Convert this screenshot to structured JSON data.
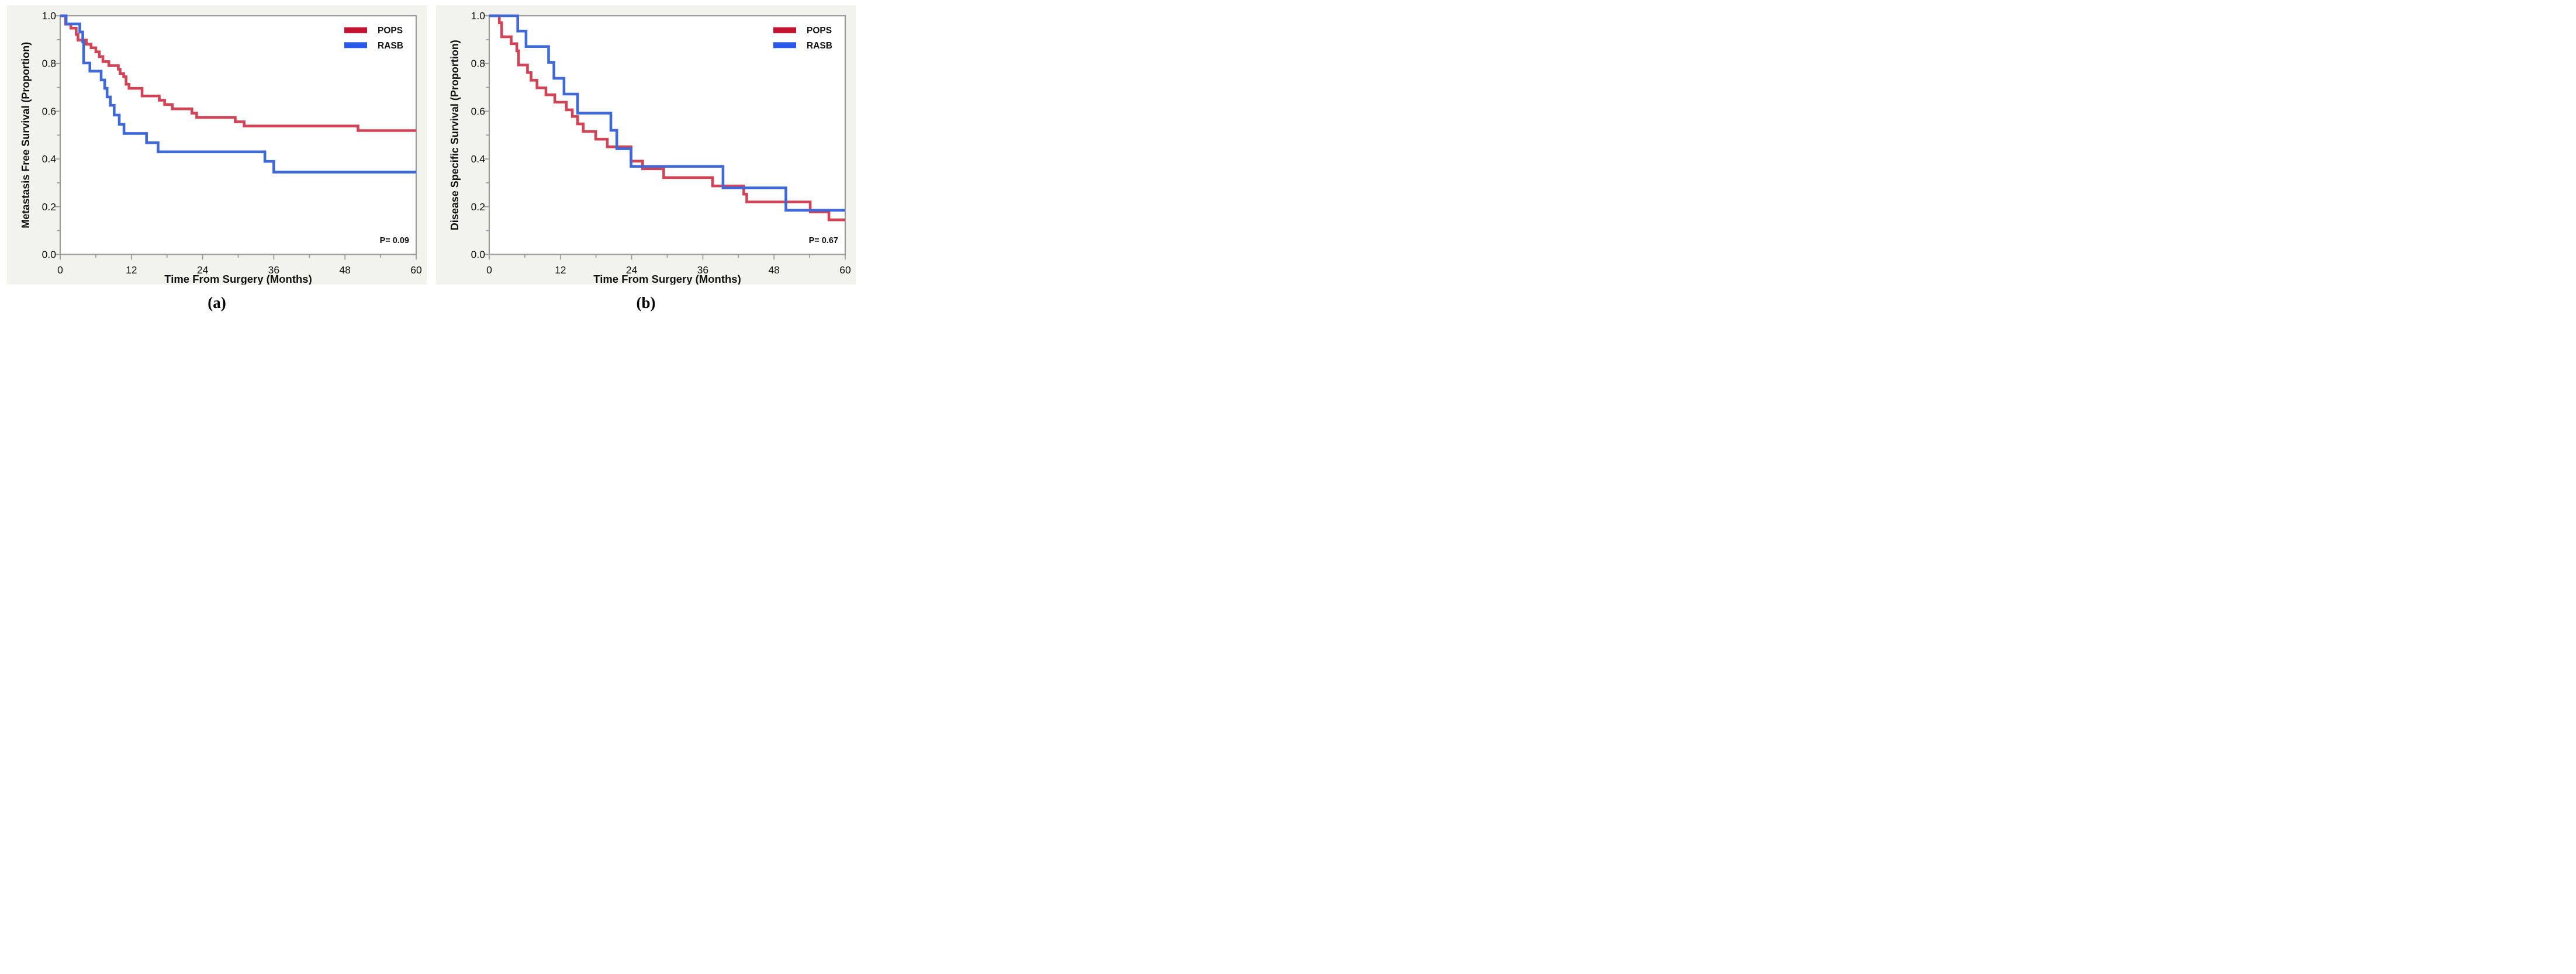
{
  "figure": {
    "captions": [
      {
        "label": "(a)"
      },
      {
        "label": "(b)"
      }
    ]
  },
  "colors": {
    "card_background": "#f3f3ee",
    "plot_background": "#ffffff",
    "frame": "#9c9c9c",
    "tick": "#9c9c9c",
    "text": "#111111",
    "pops_line": "#d24356",
    "pops_swatch": "#c41230",
    "rasb_line": "#3f68d9",
    "rasb_swatch": "#2959ea"
  },
  "chart_data": [
    {
      "type": "line",
      "subtype": "kaplan-meier-step",
      "panel": "a",
      "xlabel": "Time From Surgery (Months)",
      "ylabel": "Metastasis Free Survival (Proportion)",
      "xlim": [
        0,
        60
      ],
      "ylim": [
        0.0,
        1.0
      ],
      "xticks_major": [
        0,
        12,
        24,
        36,
        48,
        60
      ],
      "xticks_minor": [
        6,
        18,
        30,
        42,
        54
      ],
      "yticks_major": [
        0.0,
        0.2,
        0.4,
        0.6,
        0.8,
        1.0
      ],
      "ytick_labels": [
        "0.0",
        "0.2",
        "0.4",
        "0.6",
        "0.8",
        "1.0"
      ],
      "yticks_minor": [
        0.1,
        0.3,
        0.5,
        0.7,
        0.9
      ],
      "grid": false,
      "legend_position": "top-right",
      "legend": [
        {
          "name": "POPS",
          "color": "#c41230"
        },
        {
          "name": "RASB",
          "color": "#2959ea"
        }
      ],
      "annotation": "P= 0.09",
      "series": [
        {
          "name": "POPS",
          "color": "#d24356",
          "steps": [
            [
              0,
              1.0
            ],
            [
              0.9,
              0.965
            ],
            [
              1.8,
              0.948
            ],
            [
              2.7,
              0.922
            ],
            [
              3.0,
              0.898
            ],
            [
              4.4,
              0.881
            ],
            [
              5.2,
              0.866
            ],
            [
              6.0,
              0.849
            ],
            [
              6.6,
              0.829
            ],
            [
              7.2,
              0.808
            ],
            [
              8.2,
              0.791
            ],
            [
              9.8,
              0.776
            ],
            [
              10.1,
              0.758
            ],
            [
              10.7,
              0.745
            ],
            [
              11.1,
              0.713
            ],
            [
              11.6,
              0.696
            ],
            [
              13.8,
              0.664
            ],
            [
              16.7,
              0.646
            ],
            [
              17.6,
              0.628
            ],
            [
              18.9,
              0.61
            ],
            [
              22.2,
              0.592
            ],
            [
              23.0,
              0.574
            ],
            [
              29.5,
              0.556
            ],
            [
              31.0,
              0.538
            ],
            [
              50.2,
              0.519
            ]
          ]
        },
        {
          "name": "RASB",
          "color": "#3f68d9",
          "steps": [
            [
              0,
              1.0
            ],
            [
              1.0,
              0.966
            ],
            [
              3.3,
              0.932
            ],
            [
              3.8,
              0.89
            ],
            [
              3.95,
              0.802
            ],
            [
              5.0,
              0.768
            ],
            [
              6.9,
              0.731
            ],
            [
              7.5,
              0.696
            ],
            [
              7.9,
              0.66
            ],
            [
              8.45,
              0.625
            ],
            [
              9.1,
              0.584
            ],
            [
              9.95,
              0.545
            ],
            [
              10.75,
              0.507
            ],
            [
              14.55,
              0.468
            ],
            [
              16.5,
              0.43
            ],
            [
              34.5,
              0.39
            ],
            [
              36.0,
              0.345
            ]
          ]
        }
      ]
    },
    {
      "type": "line",
      "subtype": "kaplan-meier-step",
      "panel": "b",
      "xlabel": "Time From Surgery (Months)",
      "ylabel": "Disease Specific Survival (Proportion)",
      "xlim": [
        0,
        60
      ],
      "ylim": [
        0.0,
        1.0
      ],
      "xticks_major": [
        0,
        12,
        24,
        36,
        48,
        60
      ],
      "xticks_minor": [
        6,
        18,
        30,
        42,
        54
      ],
      "yticks_major": [
        0.0,
        0.2,
        0.4,
        0.6,
        0.8,
        1.0
      ],
      "ytick_labels": [
        "0.0",
        "0.2",
        "0.4",
        "0.6",
        "0.8",
        "1.0"
      ],
      "yticks_minor": [
        0.1,
        0.3,
        0.5,
        0.7,
        0.9
      ],
      "grid": false,
      "legend_position": "top-right",
      "legend": [
        {
          "name": "POPS",
          "color": "#c41230"
        },
        {
          "name": "RASB",
          "color": "#2959ea"
        }
      ],
      "annotation": "P= 0.67",
      "series": [
        {
          "name": "POPS",
          "color": "#d24356",
          "steps": [
            [
              0,
              1.0
            ],
            [
              1.7,
              0.971
            ],
            [
              2.1,
              0.912
            ],
            [
              3.7,
              0.883
            ],
            [
              4.65,
              0.853
            ],
            [
              4.95,
              0.794
            ],
            [
              6.45,
              0.762
            ],
            [
              7.05,
              0.73
            ],
            [
              8.05,
              0.698
            ],
            [
              9.55,
              0.669
            ],
            [
              11.05,
              0.638
            ],
            [
              13.0,
              0.606
            ],
            [
              14.0,
              0.578
            ],
            [
              14.9,
              0.547
            ],
            [
              15.85,
              0.515
            ],
            [
              17.95,
              0.483
            ],
            [
              19.9,
              0.451
            ],
            [
              23.9,
              0.391
            ],
            [
              25.85,
              0.359
            ],
            [
              29.4,
              0.322
            ],
            [
              37.65,
              0.287
            ],
            [
              42.9,
              0.253
            ],
            [
              43.4,
              0.22
            ],
            [
              54.1,
              0.178
            ],
            [
              57.25,
              0.145
            ]
          ]
        },
        {
          "name": "RASB",
          "color": "#3f68d9",
          "steps": [
            [
              0,
              1.0
            ],
            [
              4.8,
              0.936
            ],
            [
              6.2,
              0.871
            ],
            [
              10.0,
              0.805
            ],
            [
              10.9,
              0.738
            ],
            [
              12.6,
              0.672
            ],
            [
              14.9,
              0.592
            ],
            [
              20.5,
              0.52
            ],
            [
              21.5,
              0.443
            ],
            [
              23.9,
              0.369
            ],
            [
              39.4,
              0.279
            ],
            [
              50.0,
              0.185
            ]
          ]
        }
      ]
    }
  ]
}
